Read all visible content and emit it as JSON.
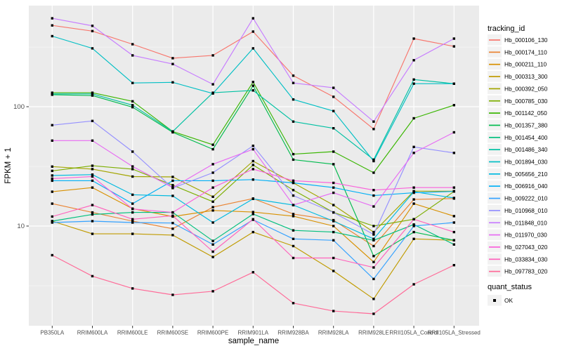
{
  "style": {
    "background": "#FFFFFF",
    "panel_bg": "#EBEBEB",
    "grid_major": "#FFFFFF",
    "grid_minor": "#F7F7F7",
    "tick_label_color": "#4D4D4D",
    "axis_title_color": "#000000",
    "point_color": "#000000",
    "legend_key_bg": "#F2F2F2",
    "legend_text_color": "#000000"
  },
  "chart_data": {
    "type": "line",
    "title": "",
    "xlabel": "sample_name",
    "ylabel": "FPKM + 1",
    "y_scale": "log10",
    "grid": true,
    "legend_position": "right",
    "legend_title": "tracking_id",
    "point_shape_legend": {
      "title": "quant_status",
      "items": [
        "OK"
      ]
    },
    "y_tick_labels": [
      "100",
      "10"
    ],
    "y_major_ticks": [
      100,
      10
    ],
    "y_minor_gridlines": [
      316,
      31.6,
      3.16
    ],
    "ylim": [
      1.5,
      690
    ],
    "x_categories": [
      "PB350LA",
      "RRIM600LA",
      "RRIM600LE",
      "RRIM600SE",
      "RRIM600PE",
      "RRIM901LA",
      "RRIM928BA",
      "RRIM928LA",
      "RRIM928LE",
      "RRII105LA_Control",
      "RRII105LA_Stressed"
    ],
    "series": [
      {
        "name": "Hb_000106_130",
        "color": "#F8766D",
        "values": [
          480,
          430,
          334,
          255,
          269,
          426,
          182,
          121,
          65,
          372,
          320
        ]
      },
      {
        "name": "Hb_000174_110",
        "color": "#EA8331",
        "values": [
          15.4,
          13,
          11,
          9.5,
          14.4,
          17,
          12.6,
          11.2,
          6.8,
          16.7,
          17
        ]
      },
      {
        "name": "Hb_000211_110",
        "color": "#D89000",
        "values": [
          19.4,
          21,
          14,
          12,
          13.5,
          13.1,
          12.1,
          10,
          5,
          15.4,
          12.1
        ]
      },
      {
        "name": "Hb_000313_300",
        "color": "#C09B00",
        "values": [
          11,
          8.6,
          8.6,
          8.4,
          5.5,
          8.9,
          6.8,
          4.2,
          2.45,
          7.8,
          7.6
        ]
      },
      {
        "name": "Hb_000392_050",
        "color": "#A3A500",
        "values": [
          31.5,
          30,
          26,
          25.8,
          17.6,
          35,
          23,
          15,
          8.9,
          19.6,
          19.6
        ]
      },
      {
        "name": "Hb_000785_030",
        "color": "#7CAE00",
        "values": [
          29,
          32,
          30,
          22,
          16,
          32.5,
          20,
          13,
          10,
          11.4,
          19.5
        ]
      },
      {
        "name": "Hb_001142_050",
        "color": "#39B600",
        "values": [
          131,
          131,
          111,
          62,
          48,
          161,
          40,
          42,
          28,
          80,
          103
        ]
      },
      {
        "name": "Hb_001357_380",
        "color": "#00BB4E",
        "values": [
          126,
          124,
          99,
          61,
          44,
          150,
          36,
          33,
          5.6,
          8.9,
          7.6
        ]
      },
      {
        "name": "Hb_001454_400",
        "color": "#00BF7D",
        "values": [
          11,
          12.5,
          13,
          13,
          7.5,
          12.6,
          9.2,
          8.9,
          7.6,
          10.3,
          7
        ]
      },
      {
        "name": "Hb_001486_340",
        "color": "#00C1A3",
        "values": [
          128,
          128,
          103,
          62,
          131,
          137,
          75,
          66,
          36,
          169,
          156
        ]
      },
      {
        "name": "Hb_001894_030",
        "color": "#00BFC4",
        "values": [
          390,
          308,
          158,
          160,
          129,
          308,
          115,
          92,
          35,
          156,
          156
        ]
      },
      {
        "name": "Hb_005656_210",
        "color": "#00BAE0",
        "values": [
          26.5,
          27,
          18.3,
          17.9,
          10.7,
          16.9,
          15,
          11,
          7.8,
          19.4,
          17.2
        ]
      },
      {
        "name": "Hb_006916_040",
        "color": "#00B0F6",
        "values": [
          24,
          24,
          15.4,
          24,
          24,
          24.5,
          23,
          21,
          18,
          19,
          19.5
        ]
      },
      {
        "name": "Hb_009222_010",
        "color": "#35A2FF",
        "values": [
          10.7,
          11,
          10.7,
          10.6,
          7,
          11.3,
          7.8,
          7.6,
          3.6,
          10,
          10.7
        ]
      },
      {
        "name": "Hb_010968_010",
        "color": "#9590FF",
        "values": [
          70,
          76,
          42,
          20.8,
          28,
          47,
          18,
          13,
          8.5,
          46,
          41
        ]
      },
      {
        "name": "Hb_011848_010",
        "color": "#C77CFF",
        "values": [
          550,
          476,
          269,
          228,
          154,
          550,
          158,
          144,
          75,
          245,
          372
        ]
      },
      {
        "name": "Hb_011970_030",
        "color": "#E76BF3",
        "values": [
          52,
          52,
          31.6,
          21,
          33,
          44,
          15,
          19,
          14.6,
          41,
          61
        ]
      },
      {
        "name": "Hb_027043_020",
        "color": "#FA62DB",
        "values": [
          25,
          26,
          13.9,
          13,
          21,
          30,
          24,
          23,
          20,
          21,
          21
        ]
      },
      {
        "name": "Hb_033834_030",
        "color": "#FF62BC",
        "values": [
          12,
          15,
          11.4,
          12.2,
          6.1,
          11.4,
          5.4,
          5.4,
          4.5,
          11.4,
          8.9
        ]
      },
      {
        "name": "Hb_097783_020",
        "color": "#FF6A98",
        "values": [
          5.7,
          3.8,
          3,
          2.65,
          2.84,
          4.1,
          2.26,
          1.94,
          1.84,
          3.25,
          4.7
        ]
      }
    ]
  }
}
